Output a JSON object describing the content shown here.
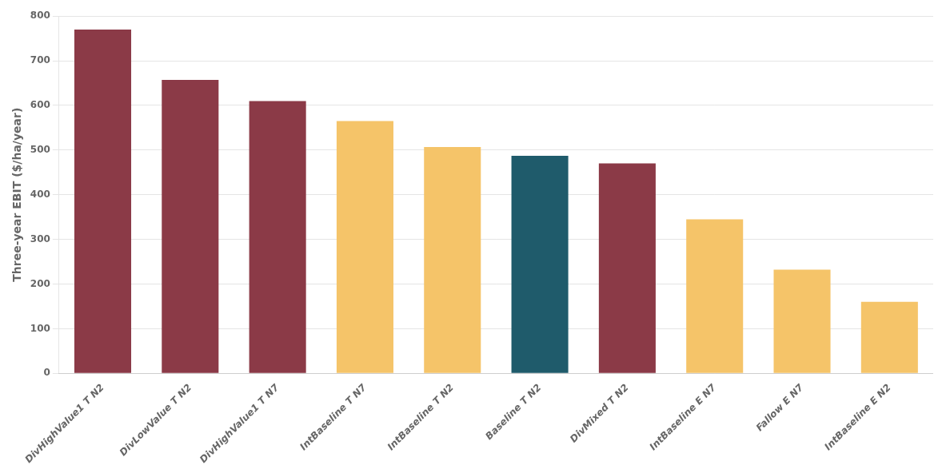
{
  "chart_data": {
    "type": "bar",
    "categories": [
      "DivHighValue1 T N2",
      "DivLowValue T N2",
      "DivHighValue1 T N7",
      "IntBaseline T N7",
      "IntBaseline T N2",
      "Baseline T N2",
      "DivMixed T N2",
      "IntBaseline E N7",
      "Fallow E N7",
      "IntBaseline E N2"
    ],
    "values": [
      770,
      657,
      610,
      565,
      507,
      487,
      470,
      345,
      232,
      160
    ],
    "colors": [
      "#8B3A47",
      "#8B3A47",
      "#8B3A47",
      "#F5C469",
      "#F5C469",
      "#1F5B6B",
      "#8B3A47",
      "#F5C469",
      "#F5C469",
      "#F5C469"
    ],
    "ylabel": "Three-year EBIT ($/ha/year)",
    "ylim": [
      0,
      800
    ],
    "yticks": [
      0,
      100,
      200,
      300,
      400,
      500,
      600,
      700,
      800
    ],
    "grid": true
  }
}
